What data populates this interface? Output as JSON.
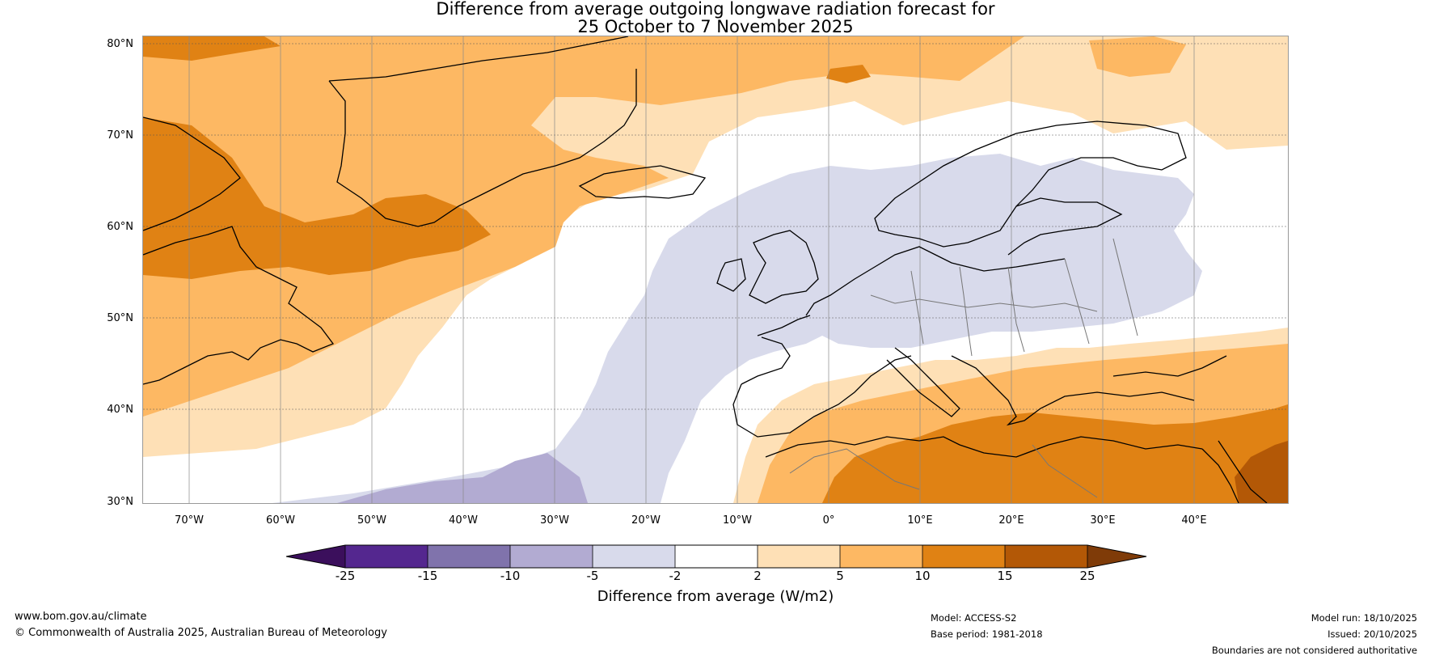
{
  "title": {
    "line1": "Difference from average outgoing longwave radiation forecast for",
    "line2": "25 October to 7 November 2025"
  },
  "map": {
    "lat_labels": [
      "80°N",
      "70°N",
      "60°N",
      "50°N",
      "40°N",
      "30°N"
    ],
    "lon_labels": [
      "70°W",
      "60°W",
      "50°W",
      "40°W",
      "30°W",
      "20°W",
      "10°W",
      "0°",
      "10°E",
      "20°E",
      "30°E",
      "40°E"
    ],
    "lat_range": [
      30,
      81
    ],
    "lon_range": [
      -75,
      50
    ]
  },
  "legend": {
    "title": "Difference from average (W/m2)",
    "ticks": [
      "-25",
      "-15",
      "-10",
      "-5",
      "-2",
      "2",
      "5",
      "10",
      "15",
      "25"
    ],
    "colors": {
      "below_neg25": "#3b0f5c",
      "neg25_neg15": "#54278f",
      "neg15_neg10": "#8073ac",
      "neg10_neg5": "#b2abd2",
      "neg5_neg2": "#d8daeb",
      "neg2_2": "#ffffff",
      "2_5": "#fee0b6",
      "5_10": "#fdb863",
      "10_15": "#e08214",
      "15_25": "#b35806",
      "above_25": "#7f3b08"
    }
  },
  "footer": {
    "website": "www.bom.gov.au/climate",
    "copyright": "© Commonwealth of Australia 2025, Australian Bureau of Meteorology",
    "model": "Model: ACCESS-S2",
    "base_period": "Base period: 1981-2018",
    "model_run": "Model run: 18/10/2025",
    "issued": "Issued: 20/10/2025",
    "boundaries": "Boundaries are not considered authoritative"
  }
}
